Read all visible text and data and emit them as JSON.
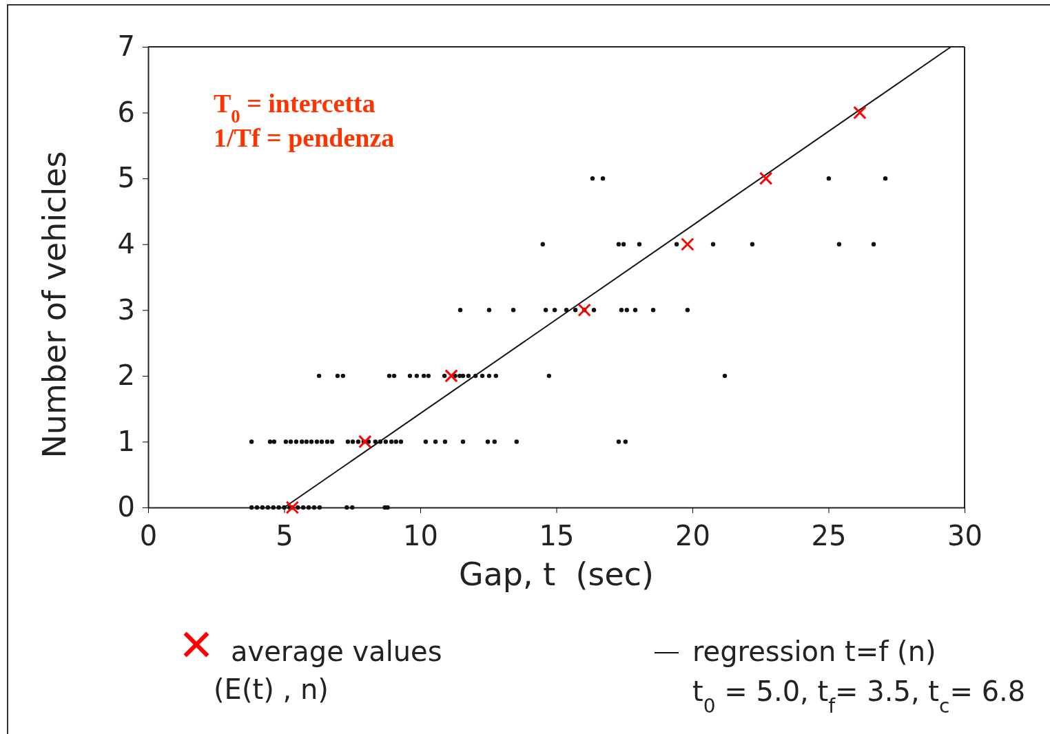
{
  "chart_data": {
    "type": "scatter",
    "xlabel": "Gap, t  (sec)",
    "ylabel": "Number of vehicles",
    "xlim": [
      0,
      30
    ],
    "ylim": [
      0,
      7
    ],
    "xticks": [
      0,
      5,
      10,
      15,
      20,
      25,
      30
    ],
    "yticks": [
      0,
      1,
      2,
      3,
      4,
      5,
      6,
      7
    ],
    "grid": false,
    "legend": "bottom",
    "annotations": [
      "T$_{0}$ = intercetta",
      "1/Tf = pendenza",
      "t$_{0}$ = 5.0, t$_{f}$= 3.5, t$_{c}$= 6.8"
    ],
    "series": [
      {
        "color": "#111111",
        "marker": "circle",
        "x": [
          3.8,
          4.0,
          4.2,
          4.4,
          4.6,
          4.8,
          5.0,
          5.2,
          5.3,
          5.5,
          5.7,
          5.9,
          6.1,
          6.3,
          7.3,
          7.5,
          8.7,
          8.8,
          3.8,
          4.48,
          4.63,
          5.06,
          5.24,
          5.44,
          5.65,
          5.82,
          6.0,
          6.2,
          6.38,
          6.58,
          6.76,
          7.34,
          7.52,
          7.72,
          7.92,
          8.1,
          8.35,
          8.53,
          8.73,
          8.94,
          9.11,
          9.29,
          10.2,
          10.56,
          10.91,
          11.57,
          12.48,
          12.73,
          13.54,
          17.29,
          17.54,
          6.28,
          6.96,
          7.16,
          8.86,
          9.04,
          9.62,
          9.87,
          10.13,
          10.3,
          10.89,
          11.28,
          11.45,
          11.57,
          11.77,
          12.03,
          12.28,
          12.53,
          12.78,
          14.73,
          21.19,
          11.47,
          12.53,
          13.42,
          14.61,
          14.94,
          15.37,
          15.7,
          16.03,
          16.38,
          17.39,
          17.59,
          17.9,
          18.56,
          19.82,
          14.5,
          17.29,
          17.47,
          18.05,
          19.42,
          20.76,
          22.2,
          25.39,
          26.66,
          16.33,
          16.71,
          25.01,
          27.09
        ],
        "values": [
          0,
          0,
          0,
          0,
          0,
          0,
          0,
          0,
          0,
          0,
          0,
          0,
          0,
          0,
          0,
          0,
          0,
          0,
          1,
          1,
          1,
          1,
          1,
          1,
          1,
          1,
          1,
          1,
          1,
          1,
          1,
          1,
          1,
          1,
          1,
          1,
          1,
          1,
          1,
          1,
          1,
          1,
          1,
          1,
          1,
          1,
          1,
          1,
          1,
          1,
          1,
          2,
          2,
          2,
          2,
          2,
          2,
          2,
          2,
          2,
          2,
          2,
          2,
          2,
          2,
          2,
          2,
          2,
          2,
          2,
          2,
          3,
          3,
          3,
          3,
          3,
          3,
          3,
          3,
          3,
          3,
          3,
          3,
          3,
          3,
          4,
          4,
          4,
          4,
          4,
          4,
          4,
          4,
          4,
          5,
          5,
          5,
          5
        ]
      },
      {
        "type": "line",
        "name": "regression t=f (n)",
        "color": "#111111",
        "marker": "none",
        "line_style": "solid",
        "x": [
          5,
          29.5
        ],
        "values": [
          0,
          7
        ]
      },
      {
        "name": "average values (E(t) , n)",
        "color": "#ff0000",
        "marker": "cross",
        "x": [
          5.3,
          7.97,
          11.14,
          16.03,
          19.82,
          22.7,
          26.15
        ],
        "values": [
          0,
          1,
          2,
          3,
          4,
          5,
          6
        ]
      }
    ]
  }
}
